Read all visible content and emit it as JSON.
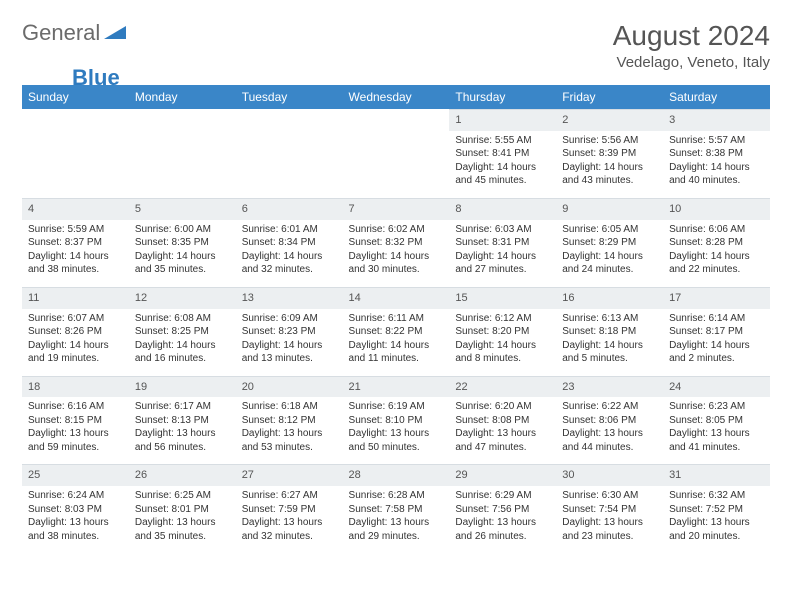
{
  "logo": {
    "general": "General",
    "blue": "Blue"
  },
  "title": "August 2024",
  "location": "Vedelago, Veneto, Italy",
  "colors": {
    "header_bg": "#3a86c8",
    "header_text": "#ffffff",
    "daynum_bg": "#eceff1",
    "body_text": "#333333",
    "logo_general": "#6b6b6b",
    "logo_blue": "#2f7bbf"
  },
  "weekdays": [
    "Sunday",
    "Monday",
    "Tuesday",
    "Wednesday",
    "Thursday",
    "Friday",
    "Saturday"
  ],
  "weeks": [
    [
      null,
      null,
      null,
      null,
      {
        "d": "1",
        "sr": "5:55 AM",
        "ss": "8:41 PM",
        "dl": "14 hours and 45 minutes."
      },
      {
        "d": "2",
        "sr": "5:56 AM",
        "ss": "8:39 PM",
        "dl": "14 hours and 43 minutes."
      },
      {
        "d": "3",
        "sr": "5:57 AM",
        "ss": "8:38 PM",
        "dl": "14 hours and 40 minutes."
      }
    ],
    [
      {
        "d": "4",
        "sr": "5:59 AM",
        "ss": "8:37 PM",
        "dl": "14 hours and 38 minutes."
      },
      {
        "d": "5",
        "sr": "6:00 AM",
        "ss": "8:35 PM",
        "dl": "14 hours and 35 minutes."
      },
      {
        "d": "6",
        "sr": "6:01 AM",
        "ss": "8:34 PM",
        "dl": "14 hours and 32 minutes."
      },
      {
        "d": "7",
        "sr": "6:02 AM",
        "ss": "8:32 PM",
        "dl": "14 hours and 30 minutes."
      },
      {
        "d": "8",
        "sr": "6:03 AM",
        "ss": "8:31 PM",
        "dl": "14 hours and 27 minutes."
      },
      {
        "d": "9",
        "sr": "6:05 AM",
        "ss": "8:29 PM",
        "dl": "14 hours and 24 minutes."
      },
      {
        "d": "10",
        "sr": "6:06 AM",
        "ss": "8:28 PM",
        "dl": "14 hours and 22 minutes."
      }
    ],
    [
      {
        "d": "11",
        "sr": "6:07 AM",
        "ss": "8:26 PM",
        "dl": "14 hours and 19 minutes."
      },
      {
        "d": "12",
        "sr": "6:08 AM",
        "ss": "8:25 PM",
        "dl": "14 hours and 16 minutes."
      },
      {
        "d": "13",
        "sr": "6:09 AM",
        "ss": "8:23 PM",
        "dl": "14 hours and 13 minutes."
      },
      {
        "d": "14",
        "sr": "6:11 AM",
        "ss": "8:22 PM",
        "dl": "14 hours and 11 minutes."
      },
      {
        "d": "15",
        "sr": "6:12 AM",
        "ss": "8:20 PM",
        "dl": "14 hours and 8 minutes."
      },
      {
        "d": "16",
        "sr": "6:13 AM",
        "ss": "8:18 PM",
        "dl": "14 hours and 5 minutes."
      },
      {
        "d": "17",
        "sr": "6:14 AM",
        "ss": "8:17 PM",
        "dl": "14 hours and 2 minutes."
      }
    ],
    [
      {
        "d": "18",
        "sr": "6:16 AM",
        "ss": "8:15 PM",
        "dl": "13 hours and 59 minutes."
      },
      {
        "d": "19",
        "sr": "6:17 AM",
        "ss": "8:13 PM",
        "dl": "13 hours and 56 minutes."
      },
      {
        "d": "20",
        "sr": "6:18 AM",
        "ss": "8:12 PM",
        "dl": "13 hours and 53 minutes."
      },
      {
        "d": "21",
        "sr": "6:19 AM",
        "ss": "8:10 PM",
        "dl": "13 hours and 50 minutes."
      },
      {
        "d": "22",
        "sr": "6:20 AM",
        "ss": "8:08 PM",
        "dl": "13 hours and 47 minutes."
      },
      {
        "d": "23",
        "sr": "6:22 AM",
        "ss": "8:06 PM",
        "dl": "13 hours and 44 minutes."
      },
      {
        "d": "24",
        "sr": "6:23 AM",
        "ss": "8:05 PM",
        "dl": "13 hours and 41 minutes."
      }
    ],
    [
      {
        "d": "25",
        "sr": "6:24 AM",
        "ss": "8:03 PM",
        "dl": "13 hours and 38 minutes."
      },
      {
        "d": "26",
        "sr": "6:25 AM",
        "ss": "8:01 PM",
        "dl": "13 hours and 35 minutes."
      },
      {
        "d": "27",
        "sr": "6:27 AM",
        "ss": "7:59 PM",
        "dl": "13 hours and 32 minutes."
      },
      {
        "d": "28",
        "sr": "6:28 AM",
        "ss": "7:58 PM",
        "dl": "13 hours and 29 minutes."
      },
      {
        "d": "29",
        "sr": "6:29 AM",
        "ss": "7:56 PM",
        "dl": "13 hours and 26 minutes."
      },
      {
        "d": "30",
        "sr": "6:30 AM",
        "ss": "7:54 PM",
        "dl": "13 hours and 23 minutes."
      },
      {
        "d": "31",
        "sr": "6:32 AM",
        "ss": "7:52 PM",
        "dl": "13 hours and 20 minutes."
      }
    ]
  ],
  "labels": {
    "sunrise": "Sunrise: ",
    "sunset": "Sunset: ",
    "daylight": "Daylight: "
  }
}
